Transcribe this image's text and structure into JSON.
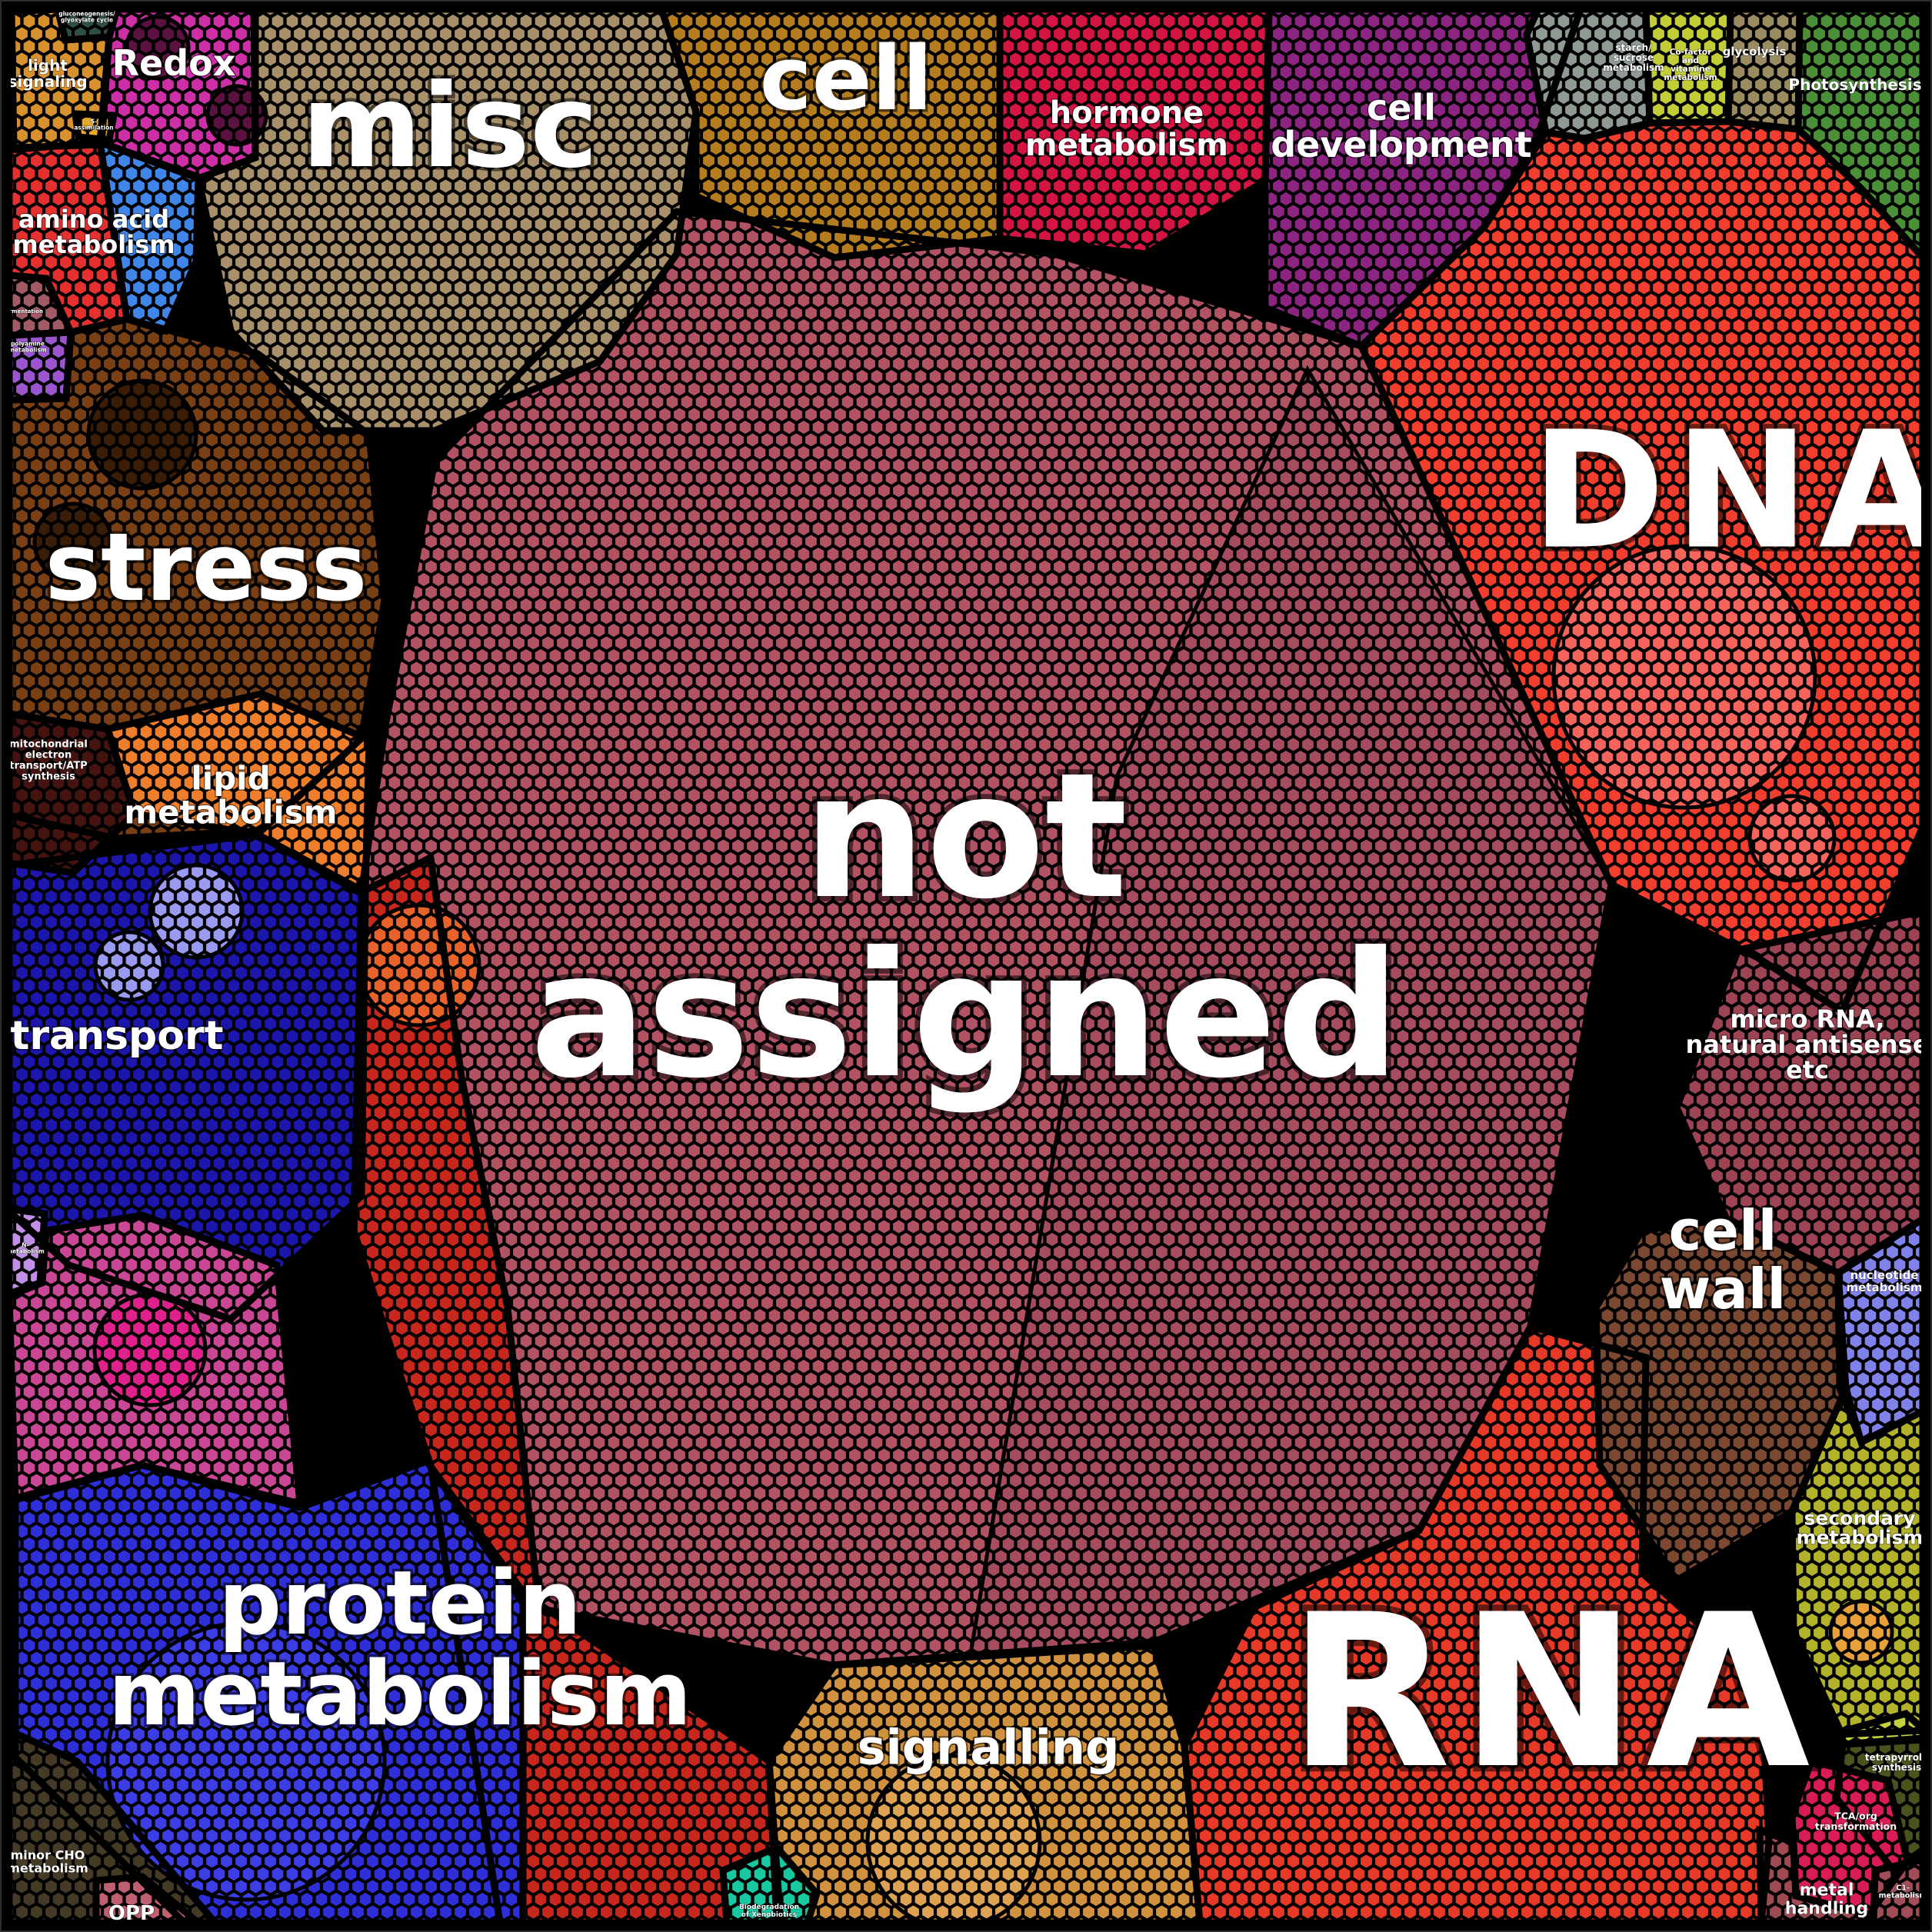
{
  "figure": {
    "description": "Voronoi treemap of gene functional categories; region area encodes relative number of genes",
    "central_label": "not assigned"
  },
  "chart_data": {
    "type": "voronoi-treemap",
    "legend": "none",
    "axes": "none",
    "regions": [
      {
        "id": "not-assigned",
        "label": "not assigned",
        "label_lines": [
          "not",
          "assigned"
        ],
        "color": "#b25363",
        "accent_color": "#a54d5e",
        "approx_area_pct": 23
      },
      {
        "id": "dna",
        "label": "DNA",
        "label_lines": [
          "DNA"
        ],
        "color": "#f23e2e",
        "accent_color": "#f4635c",
        "approx_area_pct": 7.5
      },
      {
        "id": "rna",
        "label": "RNA",
        "label_lines": [
          "RNA"
        ],
        "color": "#e63928",
        "accent_color": "#ee5a48",
        "approx_area_pct": 8.5
      },
      {
        "id": "protein-metabolism",
        "label": "protein metabolism",
        "label_lines": [
          "protein",
          "metabolism"
        ],
        "color": "#2f2fd9",
        "accent_color": "#3d3de6",
        "approx_area_pct": 8
      },
      {
        "id": "signalling",
        "label": "signalling",
        "label_lines": [
          "signalling"
        ],
        "color": "#d0923e",
        "accent_color": "#dda353",
        "approx_area_pct": 3.5
      },
      {
        "id": "transport",
        "label": "transport",
        "label_lines": [
          "transport"
        ],
        "color": "#1d16ad",
        "accent_color": "#9a9af0",
        "approx_area_pct": 4
      },
      {
        "id": "stress",
        "label": "stress",
        "label_lines": [
          "stress"
        ],
        "color": "#7a4015",
        "accent_color": "#3a1d06",
        "approx_area_pct": 4.5
      },
      {
        "id": "misc",
        "label": "misc",
        "label_lines": [
          "misc"
        ],
        "color": "#a8906b",
        "accent_color": "#b89f78",
        "approx_area_pct": 5
      },
      {
        "id": "cell",
        "label": "cell",
        "label_lines": [
          "cell"
        ],
        "color": "#b57d20",
        "accent_color": "#c08a2e",
        "approx_area_pct": 2.5
      },
      {
        "id": "hormone-metabolism",
        "label": "hormone metabolism",
        "label_lines": [
          "hormone",
          "metabolism"
        ],
        "color": "#d41544",
        "accent_color": "#dd2f57",
        "approx_area_pct": 1.5
      },
      {
        "id": "cell-development",
        "label": "cell development",
        "label_lines": [
          "cell",
          "development"
        ],
        "color": "#8c2482",
        "accent_color": "#9a3390",
        "approx_area_pct": 2
      },
      {
        "id": "starch-sucrose-metabolism",
        "label": "starch/ sucrose metabolism",
        "label_lines": [
          "starch/",
          "sucrose",
          "metabolism"
        ],
        "color": "#8f9a93",
        "accent_color": "#9ea8a1",
        "approx_area_pct": 0.5
      },
      {
        "id": "cofactor-vitamine-metabolism",
        "label": "Co-factor and vitamine metabolism",
        "label_lines": [
          "Co-factor",
          "and",
          "vitamine",
          "metabolism"
        ],
        "color": "#c2cd37",
        "accent_color": "#ccd74a",
        "approx_area_pct": 0.4
      },
      {
        "id": "glycolysis",
        "label": "glycolysis",
        "label_lines": [
          "glycolysis"
        ],
        "color": "#9a8b61",
        "accent_color": "#a7986e",
        "approx_area_pct": 0.4
      },
      {
        "id": "photosynthesis",
        "label": "Photosynthesis",
        "label_lines": [
          "Photosynthesis"
        ],
        "color": "#4b9038",
        "accent_color": "#5aa045",
        "approx_area_pct": 0.9
      },
      {
        "id": "micro-rna",
        "label": "micro RNA, natural antisense etc",
        "label_lines": [
          "micro RNA,",
          "natural antisense",
          "etc"
        ],
        "color": "#9c4354",
        "accent_color": "#b05b68",
        "approx_area_pct": 1.4
      },
      {
        "id": "cell-wall",
        "label": "cell wall",
        "label_lines": [
          "cell",
          "wall"
        ],
        "color": "#7b4931",
        "accent_color": "#8a563c",
        "approx_area_pct": 1.8
      },
      {
        "id": "nucleotide-metabolism",
        "label": "nucleotide metabolism",
        "label_lines": [
          "nucleotide",
          "metabolism"
        ],
        "color": "#8181ea",
        "accent_color": "#9292f0",
        "approx_area_pct": 0.8
      },
      {
        "id": "secondary-metabolism",
        "label": "secondary metabolism",
        "label_lines": [
          "secondary",
          "metabolism"
        ],
        "color": "#b2b22b",
        "accent_color": "#e8a13a",
        "approx_area_pct": 1.4
      },
      {
        "id": "tetrapyrrole-synthesis",
        "label": "tetrapyrrole synthesis",
        "label_lines": [
          "tetrapyrrole",
          "synthesis"
        ],
        "color": "#4a521d",
        "accent_color": "#5a6226",
        "approx_area_pct": 0.5
      },
      {
        "id": "tca-org-transformation",
        "label": "TCA/org transformation",
        "label_lines": [
          "TCA/org",
          "transformation"
        ],
        "color": "#da1c55",
        "accent_color": "#e23766",
        "approx_area_pct": 0.5
      },
      {
        "id": "metal-handling",
        "label": "metal handling",
        "label_lines": [
          "metal",
          "handling"
        ],
        "color": "#9f4a53",
        "accent_color": "#ae5a62",
        "approx_area_pct": 0.8
      },
      {
        "id": "c1-metabolism",
        "label": "C1- metabolism",
        "label_lines": [
          "C1-",
          "metabolism"
        ],
        "color": "#a04d57",
        "accent_color": "#ad5c65",
        "approx_area_pct": 0.3
      },
      {
        "id": "minor-cho-metabolism",
        "label": "minor CHO metabolism",
        "label_lines": [
          "minor CHO",
          "metabolism"
        ],
        "color": "#453a26",
        "accent_color": "#554832",
        "approx_area_pct": 1
      },
      {
        "id": "opp",
        "label": "OPP",
        "label_lines": [
          "OPP"
        ],
        "color": "#bf5f6f",
        "accent_color": "#cb7180",
        "approx_area_pct": 0.2
      },
      {
        "id": "unlabeled-pink",
        "label": "",
        "label_lines": [],
        "color": "#c94794",
        "accent_color": "#e0218c",
        "approx_area_pct": 1.2
      },
      {
        "id": "n-metabolism",
        "label": "N- metabolism",
        "label_lines": [
          "N-",
          "metabolism"
        ],
        "color": "#c28fe8",
        "accent_color": "#cf9ff0",
        "approx_area_pct": 0.15
      },
      {
        "id": "mitochondrial-electron-transport-atp-synthesis",
        "label": "mitochondrial electron transport/ATP synthesis",
        "label_lines": [
          "mitochondrial",
          "electron",
          "transport/ATP",
          "synthesis"
        ],
        "color": "#451310",
        "accent_color": "#5a1f1a",
        "approx_area_pct": 0.7
      },
      {
        "id": "lipid-metabolism",
        "label": "lipid metabolism",
        "label_lines": [
          "lipid",
          "metabolism"
        ],
        "color": "#ee7e2c",
        "accent_color": "#f59045",
        "approx_area_pct": 1.4
      },
      {
        "id": "amino-acid-metabolism",
        "label": "amino acid metabolism",
        "label_lines": [
          "amino acid",
          "metabolism"
        ],
        "color": "#e63030",
        "accent_color": "#ee4c44",
        "approx_area_pct": 1.2
      },
      {
        "id": "unlabeled-blue",
        "label": "",
        "label_lines": [],
        "color": "#3f86e8",
        "accent_color": "#5c9af0",
        "approx_area_pct": 0.7
      },
      {
        "id": "fermentation",
        "label": "fermentation",
        "label_lines": [
          "fermentation"
        ],
        "color": "#a25a64",
        "accent_color": "#b06a73",
        "approx_area_pct": 0.15
      },
      {
        "id": "polyamine-metabolism",
        "label": "polyamine metabolism",
        "label_lines": [
          "polyamine",
          "metabolism"
        ],
        "color": "#9a55cf",
        "accent_color": "#a968d8",
        "approx_area_pct": 0.15
      },
      {
        "id": "redox",
        "label": "Redox",
        "label_lines": [
          "Redox"
        ],
        "color": "#ce2fa6",
        "accent_color": "#5c1240",
        "approx_area_pct": 1
      },
      {
        "id": "light-signaling",
        "label": "light signaling",
        "label_lines": [
          "light",
          "signaling"
        ],
        "color": "#d8912f",
        "accent_color": "#e2a345",
        "approx_area_pct": 0.6
      },
      {
        "id": "gluconeogenesis-glyoxylate-cycle",
        "label": "gluconeogenesis/ glyoxylate cycle",
        "label_lines": [
          "gluconeogenesis/",
          "glyoxylate cycle"
        ],
        "color": "#2f4f45",
        "accent_color": "#3d5f54",
        "approx_area_pct": 0.12
      },
      {
        "id": "s-assimilation",
        "label": "S- assimilation",
        "label_lines": [
          "S-",
          "assimilation"
        ],
        "color": "#e8a828",
        "accent_color": "#f0b53c",
        "approx_area_pct": 0.08
      },
      {
        "id": "biodegradation-of-xenobiotics",
        "label": "Biodegradation of Xenobiotics",
        "label_lines": [
          "Biodegradation",
          "of Xenobiotics"
        ],
        "color": "#17c8a0",
        "accent_color": "#2fd6b0",
        "approx_area_pct": 0.2
      },
      {
        "id": "unlabeled-red-band",
        "label": "",
        "label_lines": [],
        "color": "#c8271e",
        "accent_color": "#e8622c",
        "approx_area_pct": 3
      },
      {
        "id": "unlabeled-yellow-sliver",
        "label": "",
        "label_lines": [],
        "color": "#c6d13e",
        "accent_color": "#d2dc52",
        "approx_area_pct": 0.1
      }
    ]
  }
}
